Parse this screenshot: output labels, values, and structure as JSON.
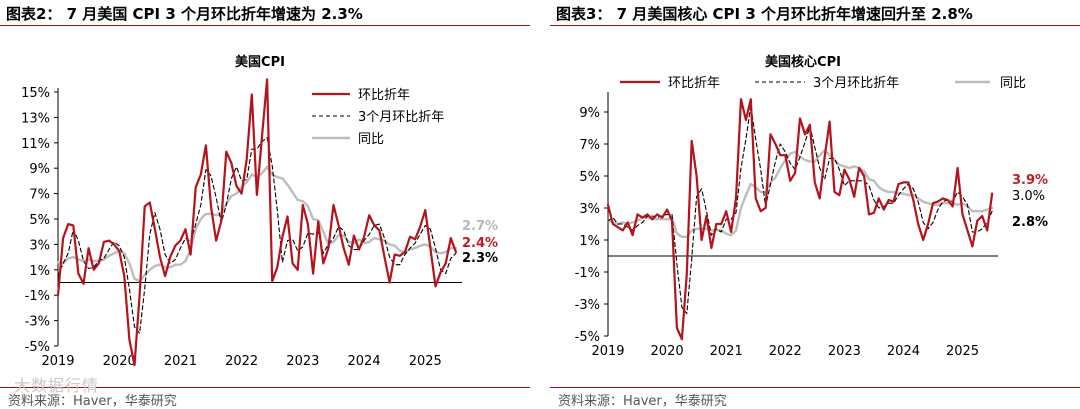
{
  "watermark": "大数据行情",
  "left": {
    "figure_title": "图表2： 7 月美国 CPI 3 个月环比折年增速为 2.3%",
    "source": "资料来源：Haver，华泰研究"
  },
  "right": {
    "figure_title": "图表3： 7 月美国核心 CPI 3 个月环比折年增速回升至 2.8%",
    "source": "资料来源：Haver，华泰研究"
  },
  "colors": {
    "mom": "#b5121b",
    "three_month": "#000000",
    "yoy": "#bdbdbd",
    "axis": "#000000"
  },
  "chart_data": [
    {
      "type": "line",
      "title": "美国CPI",
      "xlabel": "",
      "ylabel": "",
      "x_range": [
        2019.0,
        2025.6
      ],
      "ylim": [
        -5,
        15
      ],
      "y_ticks": [
        -5,
        -3,
        -1,
        1,
        3,
        5,
        7,
        9,
        11,
        13,
        15
      ],
      "y_tick_labels": [
        "-5%",
        "-3%",
        "-1%",
        "1%",
        "3%",
        "5%",
        "7%",
        "9%",
        "11%",
        "13%",
        "15%"
      ],
      "x_ticks": [
        2019,
        2020,
        2021,
        2022,
        2023,
        2024,
        2025
      ],
      "x_tick_labels": [
        "2019",
        "2020",
        "2021",
        "2022",
        "2023",
        "2024",
        "2025"
      ],
      "legend": [
        "环比折年",
        "3个月环比折年",
        "同比"
      ],
      "legend_position": "top-right",
      "end_labels": [
        {
          "text": "2.7%",
          "value": 2.7,
          "series": "同比"
        },
        {
          "text": "2.4%",
          "value": 2.4,
          "series": "环比折年"
        },
        {
          "text": "2.3%",
          "value": 2.3,
          "series": "3个月环比折年"
        }
      ],
      "series": [
        {
          "name": "环比折年",
          "style": "solid-red",
          "values": [
            -1.0,
            3.5,
            4.6,
            4.5,
            0.7,
            -0.1,
            2.7,
            1.0,
            1.5,
            3.2,
            3.3,
            3.0,
            2.5,
            0.5,
            -4.5,
            -6.5,
            -1.0,
            6.0,
            6.3,
            4.2,
            2.0,
            0.5,
            2.0,
            2.9,
            3.3,
            4.2,
            2.2,
            7.5,
            8.5,
            10.8,
            6.0,
            3.3,
            4.8,
            10.3,
            9.4,
            7.6,
            7.0,
            9.7,
            14.8,
            6.9,
            11.5,
            16.0,
            0.1,
            1.2,
            3.6,
            5.2,
            1.5,
            1.0,
            6.1,
            4.6,
            0.7,
            4.8,
            1.5,
            2.7,
            6.1,
            4.5,
            2.7,
            1.4,
            3.7,
            2.6,
            3.6,
            5.3,
            4.5,
            4.1,
            2.0,
            0.0,
            2.2,
            2.1,
            2.4,
            3.6,
            3.4,
            4.4,
            5.7,
            2.7,
            -0.3,
            0.8,
            1.5,
            3.5,
            2.4
          ]
        },
        {
          "name": "3个月环比折年",
          "style": "dashed-black",
          "values": [
            0.5,
            1.5,
            2.3,
            4.2,
            3.3,
            1.7,
            1.1,
            1.2,
            1.7,
            1.9,
            2.6,
            3.2,
            2.9,
            2.0,
            -0.5,
            -3.5,
            -4.0,
            -0.5,
            3.8,
            5.5,
            4.2,
            2.2,
            1.5,
            1.8,
            2.7,
            3.5,
            3.2,
            4.6,
            6.1,
            8.9,
            8.4,
            6.7,
            4.7,
            6.1,
            8.2,
            9.1,
            8.0,
            8.1,
            10.5,
            10.5,
            11.1,
            11.4,
            9.2,
            5.7,
            1.6,
            3.3,
            3.4,
            2.5,
            2.8,
            3.9,
            3.8,
            4.0,
            2.3,
            3.0,
            3.5,
            4.4,
            4.1,
            2.9,
            2.6,
            2.6,
            3.3,
            3.8,
            4.5,
            4.6,
            3.5,
            2.0,
            1.4,
            1.4,
            2.2,
            2.7,
            3.1,
            3.8,
            4.5,
            4.2,
            2.7,
            1.0,
            0.7,
            1.9,
            2.3
          ]
        },
        {
          "name": "同比",
          "style": "solid-gray",
          "values": [
            1.6,
            1.5,
            1.9,
            2.0,
            1.8,
            1.7,
            1.8,
            1.7,
            1.7,
            1.8,
            2.1,
            2.3,
            2.5,
            2.3,
            1.5,
            0.3,
            0.1,
            0.6,
            1.0,
            1.3,
            1.4,
            1.2,
            1.2,
            1.4,
            1.4,
            1.7,
            2.6,
            4.2,
            5.0,
            5.4,
            5.4,
            5.3,
            5.4,
            6.2,
            6.8,
            7.0,
            7.5,
            7.9,
            8.5,
            8.3,
            8.6,
            9.1,
            8.5,
            8.3,
            8.2,
            7.7,
            7.1,
            6.5,
            6.4,
            6.0,
            5.0,
            4.9,
            4.0,
            3.0,
            3.2,
            3.7,
            3.7,
            3.2,
            3.1,
            3.4,
            3.1,
            3.2,
            3.5,
            3.4,
            3.3,
            3.0,
            2.9,
            2.5,
            2.4,
            2.6,
            2.7,
            2.9,
            3.0,
            2.8,
            2.4,
            2.3,
            2.4,
            2.7,
            2.7
          ]
        }
      ]
    },
    {
      "type": "line",
      "title": "美国核心CPI",
      "xlabel": "",
      "ylabel": "",
      "x_range": [
        2019.0,
        2025.6
      ],
      "ylim": [
        -5,
        10
      ],
      "y_ticks": [
        -5,
        -3,
        -1,
        1,
        3,
        5,
        7,
        9
      ],
      "y_tick_labels": [
        "-5%",
        "-3%",
        "-1%",
        "1%",
        "3%",
        "5%",
        "7%",
        "9%"
      ],
      "x_ticks": [
        2019,
        2020,
        2021,
        2022,
        2023,
        2024,
        2025
      ],
      "x_tick_labels": [
        "2019",
        "2020",
        "2021",
        "2022",
        "2023",
        "2024",
        "2025"
      ],
      "legend": [
        "环比折年",
        "3个月环比折年",
        "同比"
      ],
      "legend_position": "top",
      "end_labels": [
        {
          "text": "3.9%",
          "value": 3.9,
          "series": "环比折年"
        },
        {
          "text": "3.0%",
          "value": 3.0,
          "series": "同比"
        },
        {
          "text": "2.8%",
          "value": 2.8,
          "series": "3个月环比折年"
        }
      ],
      "series": [
        {
          "name": "环比折年",
          "style": "solid-red",
          "values": [
            3.2,
            2.0,
            1.8,
            1.6,
            2.1,
            1.3,
            2.6,
            2.4,
            2.6,
            2.3,
            2.6,
            2.4,
            2.9,
            2.2,
            -4.5,
            -5.2,
            -1.1,
            7.2,
            5.0,
            1.0,
            2.5,
            0.5,
            2.0,
            2.0,
            2.8,
            1.5,
            3.6,
            9.8,
            8.5,
            9.8,
            3.6,
            2.8,
            3.0,
            7.6,
            7.0,
            6.3,
            6.3,
            4.7,
            5.2,
            8.6,
            7.6,
            8.2,
            4.6,
            3.6,
            6.2,
            8.4,
            4.0,
            3.8,
            5.4,
            4.8,
            3.7,
            5.5,
            5.0,
            2.6,
            2.7,
            3.6,
            2.9,
            3.5,
            3.4,
            4.5,
            4.6,
            4.6,
            3.5,
            2.0,
            1.0,
            2.0,
            3.3,
            3.4,
            3.6,
            3.5,
            3.1,
            5.5,
            2.6,
            1.6,
            0.6,
            2.2,
            2.5,
            1.6,
            3.9
          ]
        },
        {
          "name": "3个月环比折年",
          "style": "dashed-black",
          "values": [
            2.2,
            2.4,
            2.0,
            2.0,
            1.8,
            1.6,
            1.9,
            2.1,
            2.5,
            2.5,
            2.4,
            2.5,
            2.6,
            2.6,
            -0.5,
            -3.2,
            -3.6,
            -0.2,
            3.7,
            4.2,
            2.8,
            1.3,
            1.7,
            1.5,
            2.3,
            2.3,
            2.7,
            5.5,
            7.3,
            9.4,
            7.3,
            5.4,
            3.1,
            4.5,
            5.9,
            7.0,
            6.5,
            5.8,
            5.4,
            6.2,
            7.1,
            8.1,
            6.8,
            5.5,
            4.8,
            6.1,
            6.1,
            5.4,
            4.4,
            4.7,
            4.7,
            4.7,
            4.7,
            4.4,
            3.5,
            3.0,
            3.1,
            3.3,
            3.3,
            3.8,
            4.2,
            4.5,
            4.2,
            3.4,
            2.1,
            1.7,
            2.1,
            2.9,
            3.4,
            3.5,
            3.4,
            4.0,
            3.7,
            3.2,
            1.5,
            1.5,
            1.7,
            2.1,
            2.8
          ]
        },
        {
          "name": "同比",
          "style": "solid-gray",
          "values": [
            2.2,
            2.1,
            2.0,
            2.1,
            2.0,
            2.1,
            2.2,
            2.4,
            2.4,
            2.3,
            2.3,
            2.3,
            2.3,
            2.4,
            1.4,
            1.2,
            1.2,
            1.6,
            1.7,
            1.7,
            1.7,
            1.6,
            1.6,
            1.6,
            1.4,
            1.3,
            1.6,
            3.0,
            3.8,
            4.5,
            4.3,
            4.0,
            4.0,
            4.6,
            4.9,
            5.5,
            6.0,
            6.4,
            6.5,
            6.2,
            6.0,
            5.9,
            5.9,
            6.3,
            6.6,
            6.3,
            6.0,
            5.7,
            5.6,
            5.5,
            5.6,
            5.5,
            5.3,
            4.8,
            4.7,
            4.3,
            4.1,
            4.0,
            4.0,
            3.9,
            3.9,
            3.8,
            3.8,
            3.6,
            3.4,
            3.3,
            3.2,
            3.2,
            3.3,
            3.3,
            3.3,
            3.2,
            3.3,
            3.1,
            2.8,
            2.8,
            2.8,
            2.9,
            3.0
          ]
        }
      ]
    }
  ]
}
